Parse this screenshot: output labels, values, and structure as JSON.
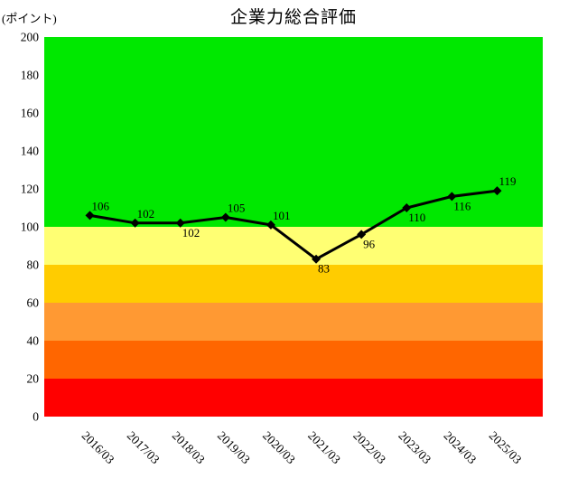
{
  "title": "企業力総合評価",
  "unit_label": "(ポイント)",
  "chart_data": {
    "type": "line",
    "title": "企業力総合評価",
    "ylabel": "(ポイント)",
    "categories": [
      "2016/03",
      "2017/03",
      "2018/03",
      "2019/03",
      "2020/03",
      "2021/03",
      "2022/03",
      "2023/03",
      "2024/03",
      "2025/03"
    ],
    "values": [
      106,
      102,
      102,
      105,
      101,
      83,
      96,
      110,
      116,
      119
    ],
    "value_label_side": [
      "above",
      "above",
      "below",
      "above",
      "above",
      "below",
      "below",
      "below",
      "below",
      "above"
    ],
    "ylim": [
      0,
      200
    ],
    "ytick_step": 20,
    "grid": false,
    "legend": "none",
    "x_tick_rotation_deg": 45,
    "line_color": "#000000",
    "marker": "diamond",
    "marker_color": "#000000",
    "bands": [
      {
        "from": 100,
        "to": 200,
        "color": "#00e800"
      },
      {
        "from": 80,
        "to": 100,
        "color": "#ffff73"
      },
      {
        "from": 60,
        "to": 80,
        "color": "#ffcc00"
      },
      {
        "from": 40,
        "to": 60,
        "color": "#ff9933"
      },
      {
        "from": 20,
        "to": 40,
        "color": "#ff6600"
      },
      {
        "from": 0,
        "to": 20,
        "color": "#ff0000"
      }
    ]
  }
}
